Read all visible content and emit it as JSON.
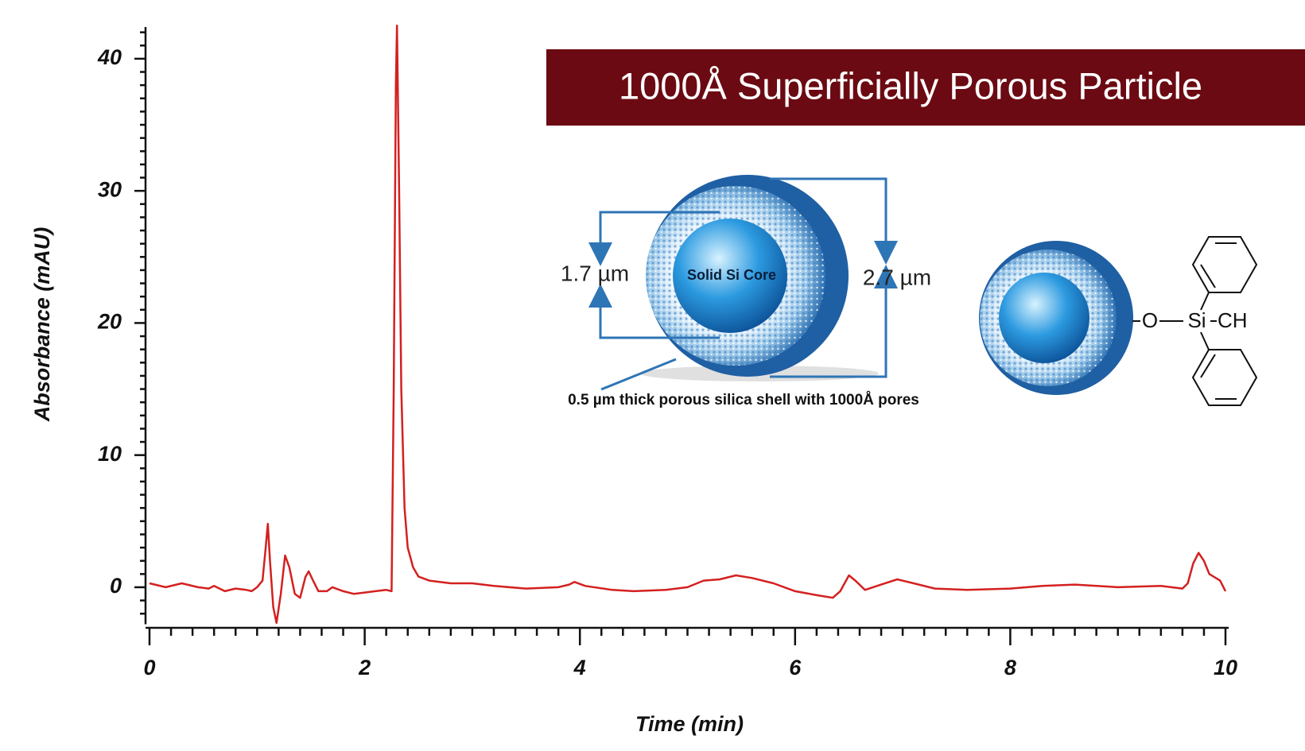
{
  "chart_data": {
    "type": "line",
    "x_label": "Time (min)",
    "y_label": "Absorbance (mAU)",
    "color": "#d42020",
    "x": [
      0,
      0.05,
      0.15,
      0.3,
      0.45,
      0.55,
      0.6,
      0.7,
      0.8,
      0.9,
      0.95,
      1.0,
      1.05,
      1.08,
      1.1,
      1.12,
      1.15,
      1.18,
      1.22,
      1.26,
      1.3,
      1.35,
      1.4,
      1.45,
      1.48,
      1.52,
      1.57,
      1.65,
      1.7,
      1.8,
      1.9,
      2.0,
      2.1,
      2.2,
      2.25,
      2.27,
      2.29,
      2.3,
      2.32,
      2.34,
      2.37,
      2.4,
      2.45,
      2.5,
      2.6,
      2.8,
      3.0,
      3.2,
      3.5,
      3.8,
      3.9,
      3.95,
      4.05,
      4.3,
      4.5,
      4.8,
      5.0,
      5.15,
      5.3,
      5.45,
      5.6,
      5.8,
      6.0,
      6.2,
      6.35,
      6.42,
      6.5,
      6.56,
      6.65,
      6.8,
      6.95,
      7.05,
      7.3,
      7.6,
      8.0,
      8.3,
      8.6,
      9.0,
      9.4,
      9.6,
      9.65,
      9.7,
      9.75,
      9.8,
      9.85,
      9.95,
      10.0
    ],
    "values": [
      0.3,
      0.2,
      0,
      0.3,
      0,
      -0.1,
      0.1,
      -0.3,
      -0.1,
      -0.2,
      -0.3,
      0,
      0.5,
      3,
      4.8,
      2,
      -1.5,
      -2.7,
      -0.5,
      2.4,
      1.5,
      -0.5,
      -0.8,
      0.8,
      1.2,
      0.5,
      -0.3,
      -0.3,
      0,
      -0.3,
      -0.5,
      -0.4,
      -0.3,
      -0.2,
      -0.3,
      15,
      38,
      42.5,
      30,
      15,
      6,
      3,
      1.5,
      0.8,
      0.5,
      0.3,
      0.3,
      0.1,
      -0.1,
      0,
      0.2,
      0.4,
      0.1,
      -0.2,
      -0.3,
      -0.2,
      0,
      0.5,
      0.6,
      0.9,
      0.7,
      0.3,
      -0.3,
      -0.6,
      -0.8,
      -0.3,
      0.9,
      0.5,
      -0.2,
      0.2,
      0.6,
      0.4,
      -0.1,
      -0.2,
      -0.1,
      0.1,
      0.2,
      0,
      0.1,
      -0.1,
      0.3,
      1.8,
      2.6,
      2,
      1,
      0.5,
      -0.3
    ],
    "xlim": [
      0,
      10
    ],
    "xticks": [
      0,
      2,
      4,
      6,
      8,
      10
    ],
    "ylim": [
      -2.8,
      42.4
    ],
    "yticks": [
      0,
      10,
      20,
      30,
      40
    ]
  },
  "inset": {
    "title": "1000Å Superficially Porous Particle",
    "core_label": "Solid Si Core",
    "inner_diameter": "1.7 µm",
    "outer_diameter": "2.7 µm",
    "caption": "0.5 µm thick porous silica shell with 1000Å pores",
    "oxygen": "O",
    "silicon": "Si",
    "methyl": "CH"
  }
}
